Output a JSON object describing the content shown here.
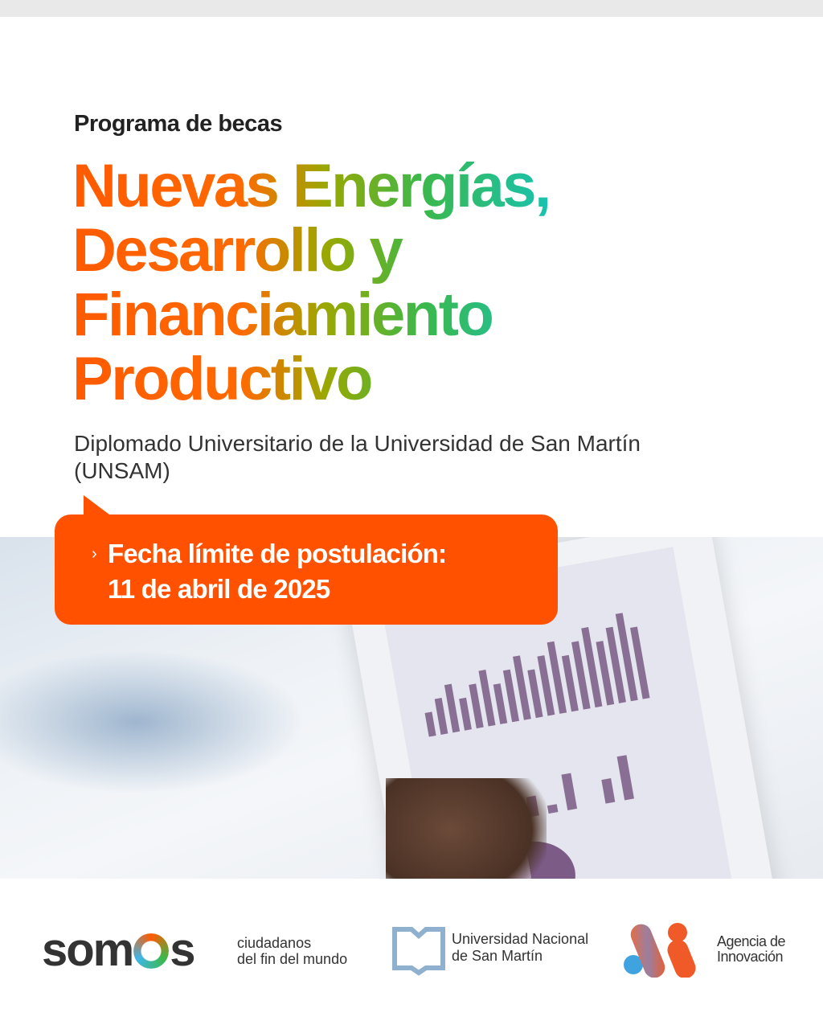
{
  "header": {
    "kicker": "Programa de becas",
    "title_lines": [
      "Nuevas Energías,",
      "Desarrollo y",
      "Financiamiento",
      "Productivo"
    ],
    "subtitle": "Diplomado Universitario de la Universidad de San Martín (UNSAM)"
  },
  "callout": {
    "icon": "chevron-right-icon",
    "line1": "Fecha límite de postulación:",
    "line2": "11 de abril de 2025",
    "color": "#ff5100"
  },
  "footer": {
    "somos": {
      "logo": "somos",
      "tagline1": "ciudadanos",
      "tagline2": "del fin del mundo"
    },
    "unsam": {
      "line1": "Universidad Nacional",
      "line2": "de San Martín"
    },
    "agencia": {
      "line1": "Agencia de",
      "line2": "Innovación"
    }
  }
}
